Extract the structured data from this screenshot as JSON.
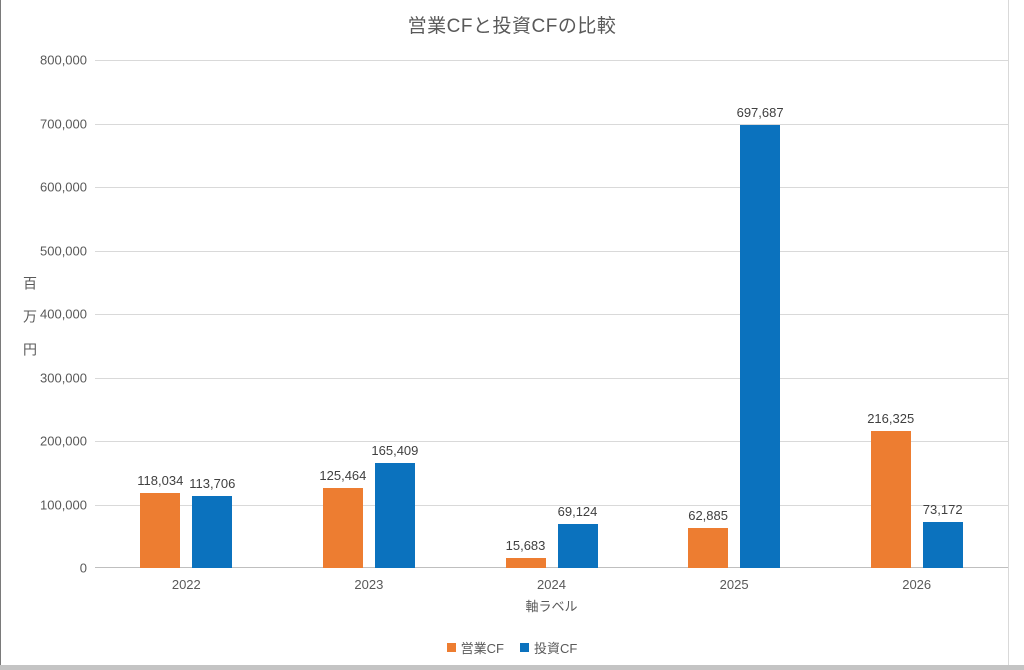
{
  "chart_data": {
    "type": "bar",
    "title": "営業CFと投資CFの比較",
    "categories": [
      "2022",
      "2023",
      "2024",
      "2025",
      "2026"
    ],
    "series": [
      {
        "name": "営業CF",
        "key": "operating-cf",
        "color": "#ED7D31",
        "values": [
          118034,
          125464,
          15683,
          62885,
          216325
        ]
      },
      {
        "name": "投資CF",
        "key": "investing-cf",
        "color": "#0B72BE",
        "values": [
          113706,
          165409,
          69124,
          697687,
          73172
        ]
      }
    ],
    "data_labels": [
      [
        "118,034",
        "125,464",
        "15,683",
        "62,885",
        "216,325"
      ],
      [
        "113,706",
        "165,409",
        "69,124",
        "697,687",
        "73,172"
      ]
    ],
    "xlabel": "軸ラベル",
    "ylabel": "百万円",
    "ylim": [
      0,
      800000
    ],
    "ytick_step": 100000,
    "ytick_labels": [
      "0",
      "100,000",
      "200,000",
      "300,000",
      "400,000",
      "500,000",
      "600,000",
      "700,000",
      "800,000"
    ],
    "grid": true,
    "legend_position": "bottom",
    "colors": {
      "gridline": "#D9D9D9",
      "axis_line": "#BFBFBF",
      "axis_text": "#595959",
      "data_label_text": "#404040"
    }
  }
}
